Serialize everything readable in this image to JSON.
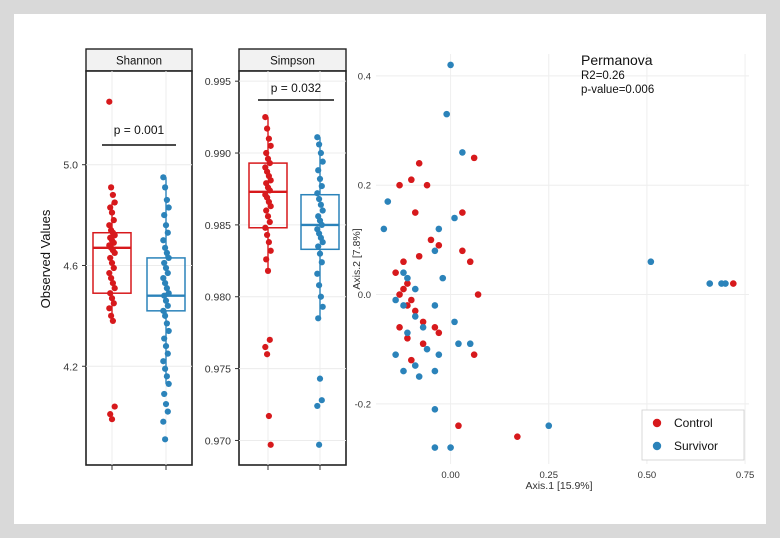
{
  "colors": {
    "control": "#d7191c",
    "survivor": "#2b83ba"
  },
  "chart_data": [
    {
      "type": "box",
      "strip_label": "Shannon",
      "ylabel": "Observed Values",
      "ylim": [
        3.82,
        5.36
      ],
      "yticks": [
        "4.2",
        "4.6",
        "5.0"
      ],
      "annotation": "p = 0.001",
      "groups": [
        {
          "name": "Control",
          "color_key": "control",
          "box": {
            "q1": 4.49,
            "median": 4.67,
            "q3": 4.73,
            "whisker_low": 4.38,
            "whisker_high": 4.85
          },
          "points": [
            5.25,
            4.91,
            4.88,
            4.85,
            4.83,
            4.81,
            4.78,
            4.76,
            4.74,
            4.73,
            4.72,
            4.71,
            4.7,
            4.69,
            4.68,
            4.67,
            4.66,
            4.65,
            4.63,
            4.61,
            4.59,
            4.57,
            4.55,
            4.53,
            4.51,
            4.49,
            4.47,
            4.45,
            4.43,
            4.4,
            4.38,
            4.04,
            4.01,
            3.99
          ]
        },
        {
          "name": "Survivor",
          "color_key": "survivor",
          "box": {
            "q1": 4.42,
            "median": 4.48,
            "q3": 4.63,
            "whisker_low": 4.13,
            "whisker_high": 4.95
          },
          "points": [
            4.95,
            4.91,
            4.86,
            4.83,
            4.8,
            4.76,
            4.73,
            4.7,
            4.67,
            4.65,
            4.63,
            4.61,
            4.59,
            4.57,
            4.55,
            4.53,
            4.51,
            4.49,
            4.48,
            4.46,
            4.44,
            4.42,
            4.4,
            4.37,
            4.34,
            4.31,
            4.28,
            4.25,
            4.22,
            4.19,
            4.16,
            4.13,
            4.09,
            4.05,
            4.02,
            3.98,
            3.91
          ]
        }
      ]
    },
    {
      "type": "box",
      "strip_label": "Simpson",
      "ylim": [
        0.9685,
        0.9955
      ],
      "yticks": [
        "0.970",
        "0.975",
        "0.980",
        "0.985",
        "0.990",
        "0.995"
      ],
      "annotation": "p = 0.032",
      "groups": [
        {
          "name": "Control",
          "color_key": "control",
          "box": {
            "q1": 0.9848,
            "median": 0.9873,
            "q3": 0.9893,
            "whisker_low": 0.9818,
            "whisker_high": 0.9925
          },
          "points": [
            0.9925,
            0.9917,
            0.991,
            0.9905,
            0.99,
            0.9896,
            0.9893,
            0.989,
            0.9887,
            0.9884,
            0.9881,
            0.9879,
            0.9876,
            0.9874,
            0.9871,
            0.9869,
            0.9866,
            0.9863,
            0.986,
            0.9856,
            0.9852,
            0.9848,
            0.9843,
            0.9838,
            0.9832,
            0.9826,
            0.9818,
            0.977,
            0.9765,
            0.976,
            0.9717,
            0.9697
          ]
        },
        {
          "name": "Survivor",
          "color_key": "survivor",
          "box": {
            "q1": 0.9833,
            "median": 0.985,
            "q3": 0.9871,
            "whisker_low": 0.9785,
            "whisker_high": 0.9911
          },
          "points": [
            0.9911,
            0.9906,
            0.99,
            0.9894,
            0.9888,
            0.9882,
            0.9877,
            0.9872,
            0.9868,
            0.9864,
            0.986,
            0.9856,
            0.9853,
            0.985,
            0.9847,
            0.9844,
            0.9841,
            0.9838,
            0.9835,
            0.983,
            0.9824,
            0.9816,
            0.9808,
            0.98,
            0.9793,
            0.9785,
            0.9743,
            0.9728,
            0.9724,
            0.9697
          ]
        }
      ]
    },
    {
      "type": "scatter",
      "title": "Permanova",
      "stats": [
        "R2=0.26",
        "p-value=0.006"
      ],
      "xlabel": "Axis.1   [15.9%]",
      "ylabel": "Axis.2   [7.8%]",
      "xlim": [
        -0.19,
        0.76
      ],
      "ylim": [
        -0.31,
        0.44
      ],
      "xticks": [
        "0.00",
        "0.25",
        "0.50",
        "0.75"
      ],
      "yticks": [
        "-0.2",
        "0.0",
        "0.2",
        "0.4"
      ],
      "legend_position": "bottom-right",
      "series": [
        {
          "name": "Control",
          "color_key": "control",
          "points": [
            [
              -0.08,
              0.24
            ],
            [
              -0.1,
              0.21
            ],
            [
              -0.13,
              0.2
            ],
            [
              -0.06,
              0.2
            ],
            [
              0.06,
              0.25
            ],
            [
              -0.09,
              0.15
            ],
            [
              0.03,
              0.15
            ],
            [
              -0.05,
              0.1
            ],
            [
              -0.03,
              0.09
            ],
            [
              0.03,
              0.08
            ],
            [
              -0.08,
              0.07
            ],
            [
              0.05,
              0.06
            ],
            [
              -0.12,
              0.06
            ],
            [
              -0.14,
              0.04
            ],
            [
              -0.11,
              0.02
            ],
            [
              -0.12,
              0.01
            ],
            [
              -0.13,
              0.0
            ],
            [
              -0.1,
              -0.01
            ],
            [
              0.07,
              0.0
            ],
            [
              -0.11,
              -0.02
            ],
            [
              -0.09,
              -0.03
            ],
            [
              -0.07,
              -0.05
            ],
            [
              -0.04,
              -0.06
            ],
            [
              -0.13,
              -0.06
            ],
            [
              -0.11,
              -0.08
            ],
            [
              -0.03,
              -0.07
            ],
            [
              -0.07,
              -0.09
            ],
            [
              0.06,
              -0.11
            ],
            [
              -0.1,
              -0.12
            ],
            [
              0.02,
              -0.24
            ],
            [
              0.17,
              -0.26
            ],
            [
              0.72,
              0.02
            ]
          ]
        },
        {
          "name": "Survivor",
          "color_key": "survivor",
          "points": [
            [
              0.0,
              0.42
            ],
            [
              -0.01,
              0.33
            ],
            [
              0.03,
              0.26
            ],
            [
              -0.16,
              0.17
            ],
            [
              -0.17,
              0.12
            ],
            [
              -0.03,
              0.12
            ],
            [
              0.01,
              0.14
            ],
            [
              -0.04,
              0.08
            ],
            [
              -0.12,
              0.04
            ],
            [
              -0.11,
              0.03
            ],
            [
              -0.02,
              0.03
            ],
            [
              -0.09,
              0.01
            ],
            [
              -0.14,
              -0.01
            ],
            [
              -0.12,
              -0.02
            ],
            [
              -0.04,
              -0.02
            ],
            [
              -0.09,
              -0.04
            ],
            [
              -0.07,
              -0.06
            ],
            [
              0.01,
              -0.05
            ],
            [
              -0.11,
              -0.07
            ],
            [
              -0.06,
              -0.1
            ],
            [
              0.02,
              -0.09
            ],
            [
              0.05,
              -0.09
            ],
            [
              -0.14,
              -0.11
            ],
            [
              -0.03,
              -0.11
            ],
            [
              -0.09,
              -0.13
            ],
            [
              -0.12,
              -0.14
            ],
            [
              -0.08,
              -0.15
            ],
            [
              -0.04,
              -0.14
            ],
            [
              -0.04,
              -0.21
            ],
            [
              -0.04,
              -0.28
            ],
            [
              0.0,
              -0.28
            ],
            [
              0.25,
              -0.24
            ],
            [
              0.51,
              0.06
            ],
            [
              0.66,
              0.02
            ],
            [
              0.69,
              0.02
            ],
            [
              0.7,
              0.02
            ]
          ]
        }
      ]
    }
  ]
}
